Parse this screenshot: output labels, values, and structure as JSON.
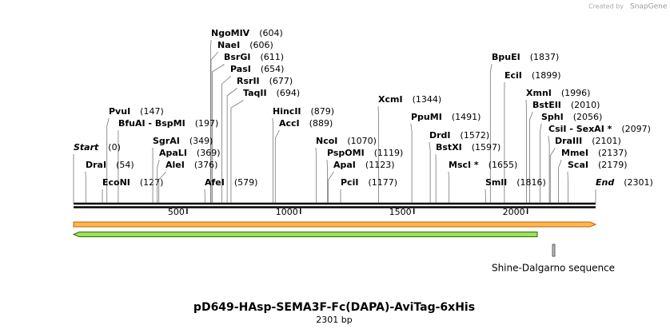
{
  "header": {
    "credit": "Created by",
    "brand": "SnapGene"
  },
  "sites": [
    {
      "name": "NgoMIV",
      "pos": "(604)"
    },
    {
      "name": "NaeI",
      "pos": "(606)"
    },
    {
      "name": "BsrGI",
      "pos": "(611)"
    },
    {
      "name": "PasI",
      "pos": "(654)"
    },
    {
      "name": "RsrII",
      "pos": "(677)"
    },
    {
      "name": "TaqII",
      "pos": "(694)"
    },
    {
      "name": "PvuI",
      "pos": "(147)"
    },
    {
      "name": "BfuAI - BspMI",
      "pos": "(197)"
    },
    {
      "name": "HincII",
      "pos": "(879)"
    },
    {
      "name": "AccI",
      "pos": "(889)"
    },
    {
      "name": "XcmI",
      "pos": "(1344)"
    },
    {
      "name": "PpuMI",
      "pos": "(1491)"
    },
    {
      "name": "BpuEI",
      "pos": "(1837)"
    },
    {
      "name": "EciI",
      "pos": "(1899)"
    },
    {
      "name": "XmnI",
      "pos": "(1996)"
    },
    {
      "name": "BstEII",
      "pos": "(2010)"
    },
    {
      "name": "SphI",
      "pos": "(2056)"
    },
    {
      "name": "CsiI - SexAI *",
      "pos": "(2097)"
    },
    {
      "name": "DraIII",
      "pos": "(2101)"
    },
    {
      "name": "MmeI",
      "pos": "(2137)"
    },
    {
      "name": "ScaI",
      "pos": "(2179)"
    },
    {
      "name": "Start",
      "pos": "(0)"
    },
    {
      "name": "DraI",
      "pos": "(54)"
    },
    {
      "name": "EcoNI",
      "pos": "(127)"
    },
    {
      "name": "SgrAI",
      "pos": "(349)"
    },
    {
      "name": "ApaLI",
      "pos": "(369)"
    },
    {
      "name": "AleI",
      "pos": "(376)"
    },
    {
      "name": "AfeI",
      "pos": "(579)"
    },
    {
      "name": "NcoI",
      "pos": "(1070)"
    },
    {
      "name": "PspOMI",
      "pos": "(1119)"
    },
    {
      "name": "ApaI",
      "pos": "(1123)"
    },
    {
      "name": "PciI",
      "pos": "(1177)"
    },
    {
      "name": "DrdI",
      "pos": "(1572)"
    },
    {
      "name": "BstXI",
      "pos": "(1597)"
    },
    {
      "name": "MscI *",
      "pos": "(1655)"
    },
    {
      "name": "SmlI",
      "pos": "(1816)"
    },
    {
      "name": "End",
      "pos": "(2301)"
    }
  ],
  "ruler": [
    "500",
    "1000",
    "1500",
    "2000"
  ],
  "features": [
    {
      "label": "Shine-Dalgarno sequence"
    }
  ],
  "title": "pD649-HAsp-SEMA3F-Fc(DAPA)-AviTag-6xHis",
  "length": "2301 bp"
}
